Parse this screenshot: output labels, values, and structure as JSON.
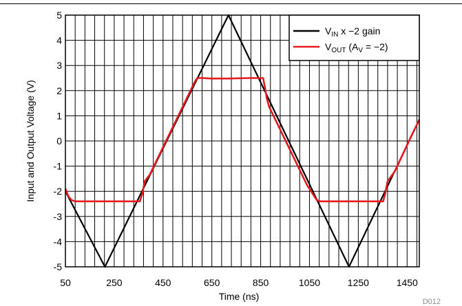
{
  "chart_data": {
    "type": "line",
    "title": "",
    "xlabel": "Time (ns)",
    "ylabel": "Input and Output Voltage (V)",
    "xlim": [
      50,
      1500
    ],
    "ylim": [
      -5,
      5
    ],
    "x_ticks": [
      50,
      250,
      450,
      650,
      850,
      1050,
      1250,
      1450
    ],
    "y_ticks": [
      5,
      4,
      3,
      2,
      1,
      0,
      -1,
      -2,
      -3,
      -4,
      -5
    ],
    "x_tick_labels": [
      "50",
      "250",
      "450",
      "650",
      "850",
      "1050",
      "1250",
      "1450"
    ],
    "y_tick_labels": [
      "5",
      "4",
      "3",
      "2",
      "1",
      "0",
      "-1",
      "-2",
      "-3",
      "-4",
      "-5"
    ],
    "grid": true,
    "legend_position": "top-right",
    "legend": [
      {
        "main": "V",
        "sub": "IN",
        "rest": " x −2 gain"
      },
      {
        "main": "V",
        "sub": "OUT",
        "rest": " (A",
        "sub2": "V",
        "rest2": " = −2)"
      }
    ],
    "series": [
      {
        "name": "VIN x −2 gain",
        "color": "#000000",
        "x": [
          50,
          212,
          718,
          1212,
          1500
        ],
        "y": [
          -2,
          -5,
          5,
          -5,
          0.85
        ]
      },
      {
        "name": "VOUT (AV = −2)",
        "color": "#e8191e",
        "x": [
          50,
          62,
          75,
          90,
          120,
          200,
          300,
          355,
          365,
          375,
          395,
          460,
          520,
          580,
          590,
          610,
          650,
          720,
          800,
          860,
          868,
          875,
          885,
          960,
          1040,
          1080,
          1095,
          1110,
          1140,
          1200,
          1300,
          1352,
          1360,
          1370,
          1400,
          1460,
          1500
        ],
        "y": [
          -1.9,
          -2.2,
          -2.35,
          -2.4,
          -2.4,
          -2.4,
          -2.4,
          -2.4,
          -2.1,
          -1.6,
          -1.35,
          -0.05,
          1.15,
          2.35,
          2.5,
          2.5,
          2.48,
          2.48,
          2.5,
          2.5,
          2.1,
          1.7,
          1.35,
          -0.15,
          -1.75,
          -2.35,
          -2.4,
          -2.4,
          -2.4,
          -2.4,
          -2.4,
          -2.4,
          -2.1,
          -1.6,
          -1.2,
          0.05,
          0.85
        ]
      }
    ]
  },
  "footnote": "D012"
}
